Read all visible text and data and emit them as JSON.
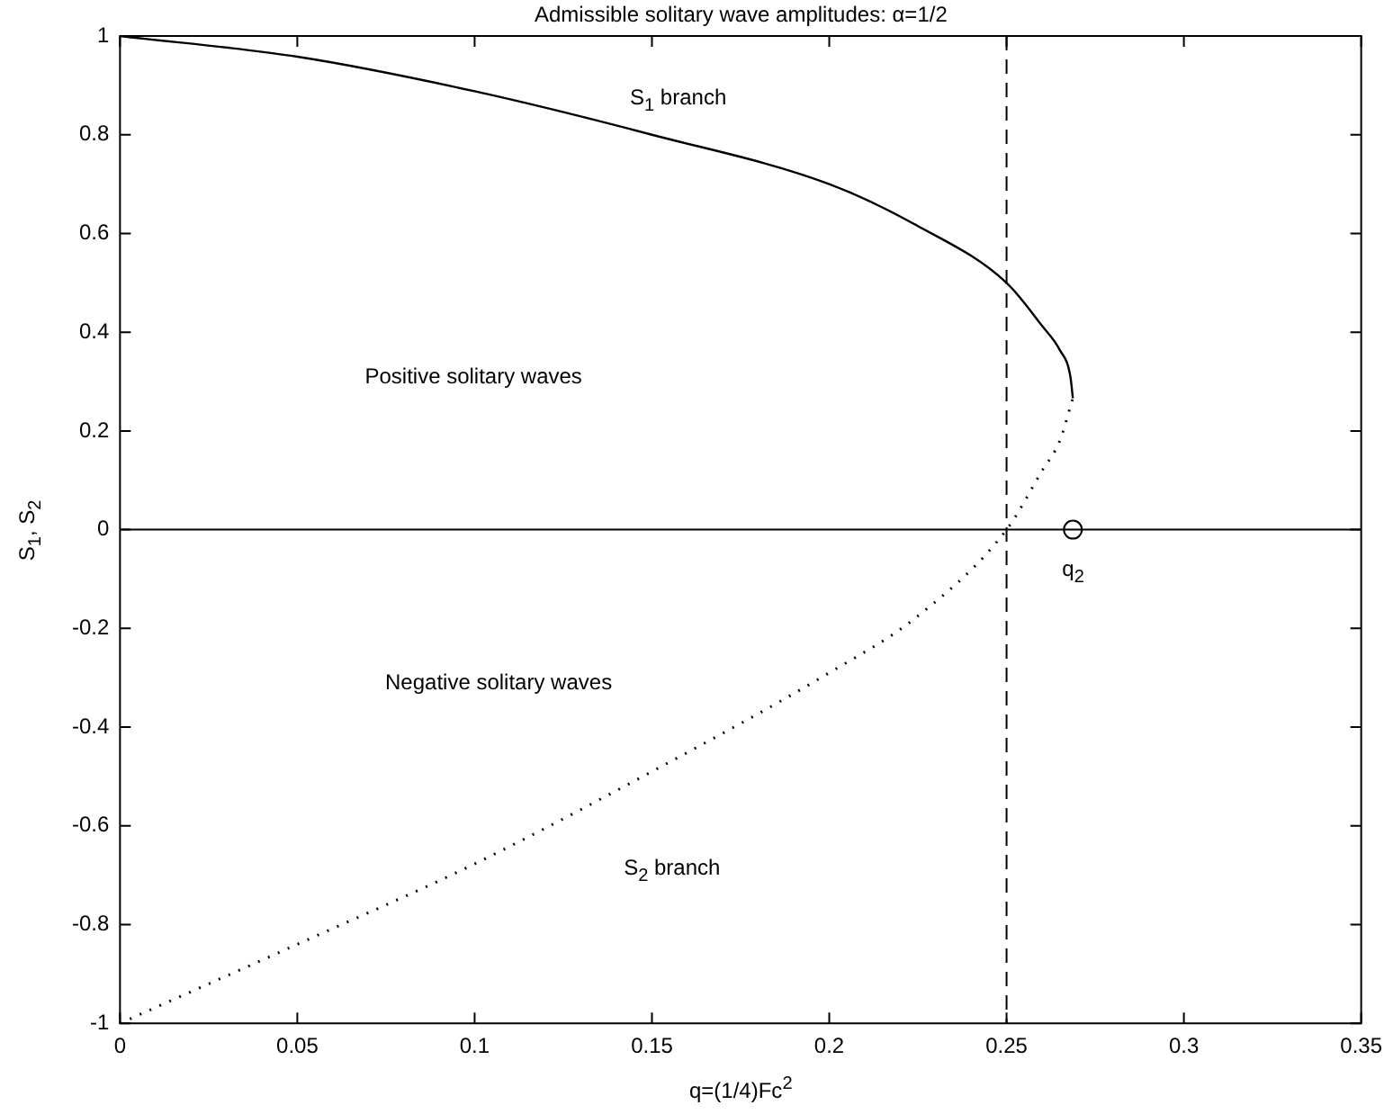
{
  "chart_data": {
    "type": "line",
    "title": "Admissible solitary wave amplitudes: α=1/2",
    "xlabel": "q=(1/4)Fc$^{2}$",
    "ylabel": "S$_{1}$, S$_{2}$",
    "xlim": [
      0,
      0.35
    ],
    "xticks": [
      0,
      0.05,
      0.1,
      0.15,
      0.2,
      0.25,
      0.3,
      0.35
    ],
    "ylim": [
      -1,
      1
    ],
    "yticks": [
      -1,
      -0.8,
      -0.6,
      -0.4,
      -0.2,
      0,
      0.2,
      0.4,
      0.6,
      0.8,
      1
    ],
    "grid": false,
    "legend": false,
    "marker": "none",
    "series": [
      {
        "type": "line",
        "color": "#000000",
        "line_style": "solid",
        "x": [
          0,
          0.05,
          0.1,
          0.15,
          0.2,
          0.225,
          0.25,
          0.26,
          0.265,
          0.268,
          0.2687
        ],
        "values": [
          1,
          0.958,
          0.888,
          0.8,
          0.7,
          0.615,
          0.5,
          0.413,
          0.364,
          0.31,
          0.266
        ]
      },
      {
        "type": "line",
        "color": "#000000",
        "line_style": "dotted",
        "x": [
          0,
          0.05,
          0.1,
          0.15,
          0.2,
          0.225,
          0.25,
          0.26,
          0.265,
          0.2687
        ],
        "values": [
          -1,
          -0.84,
          -0.677,
          -0.49,
          -0.29,
          -0.175,
          0,
          0.119,
          0.18,
          0.266
        ]
      },
      {
        "type": "scatter",
        "color": "#000000",
        "marker": "circle",
        "x": [
          0.2687
        ],
        "values": [
          0
        ]
      }
    ],
    "ref_lines": [
      {
        "axis": "x",
        "value": 0.25,
        "line_style": "dashed",
        "color": "#000000"
      },
      {
        "axis": "y",
        "value": 0,
        "line_style": "solid",
        "color": "#000000"
      }
    ],
    "annotations": [
      "S$_{1}$ branch",
      "Positive solitary waves",
      "Negative solitary waves",
      "S$_{2}$ branch",
      {
        "text": "q$_{2}$",
        "x": 0.2687,
        "y": 0
      }
    ]
  }
}
